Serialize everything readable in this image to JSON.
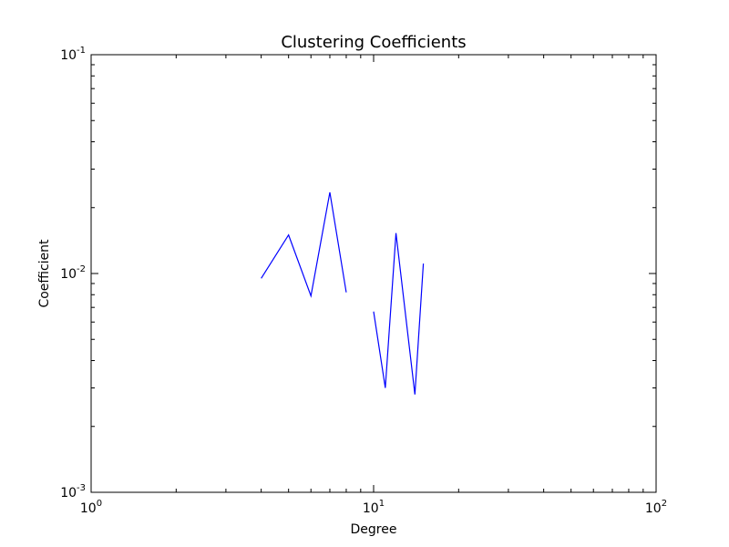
{
  "chart_data": {
    "type": "line",
    "title": "Clustering Coefficients",
    "xlabel": "Degree",
    "ylabel": "Coefficient",
    "xscale": "log",
    "yscale": "log",
    "xlim": [
      1,
      100
    ],
    "ylim": [
      0.001,
      0.1
    ],
    "grid": false,
    "legend": "none",
    "x_ticks": [
      {
        "base": "10",
        "exp": "0",
        "value": 1
      },
      {
        "base": "10",
        "exp": "1",
        "value": 10
      },
      {
        "base": "10",
        "exp": "2",
        "value": 100
      }
    ],
    "y_ticks": [
      {
        "base": "10",
        "exp": "-3",
        "value": 0.001
      },
      {
        "base": "10",
        "exp": "-2",
        "value": 0.01
      },
      {
        "base": "10",
        "exp": "-1",
        "value": 0.1
      }
    ],
    "series": [
      {
        "color": "#0000ff",
        "segments": [
          [
            {
              "x": 4,
              "y": 0.0095
            },
            {
              "x": 5,
              "y": 0.015
            },
            {
              "x": 6,
              "y": 0.0079
            },
            {
              "x": 7,
              "y": 0.0235
            },
            {
              "x": 8,
              "y": 0.0082
            }
          ],
          [
            {
              "x": 10,
              "y": 0.0067
            },
            {
              "x": 11,
              "y": 0.003
            },
            {
              "x": 12,
              "y": 0.0153
            },
            {
              "x": 14,
              "y": 0.0028
            },
            {
              "x": 15,
              "y": 0.0111
            }
          ]
        ]
      }
    ]
  }
}
